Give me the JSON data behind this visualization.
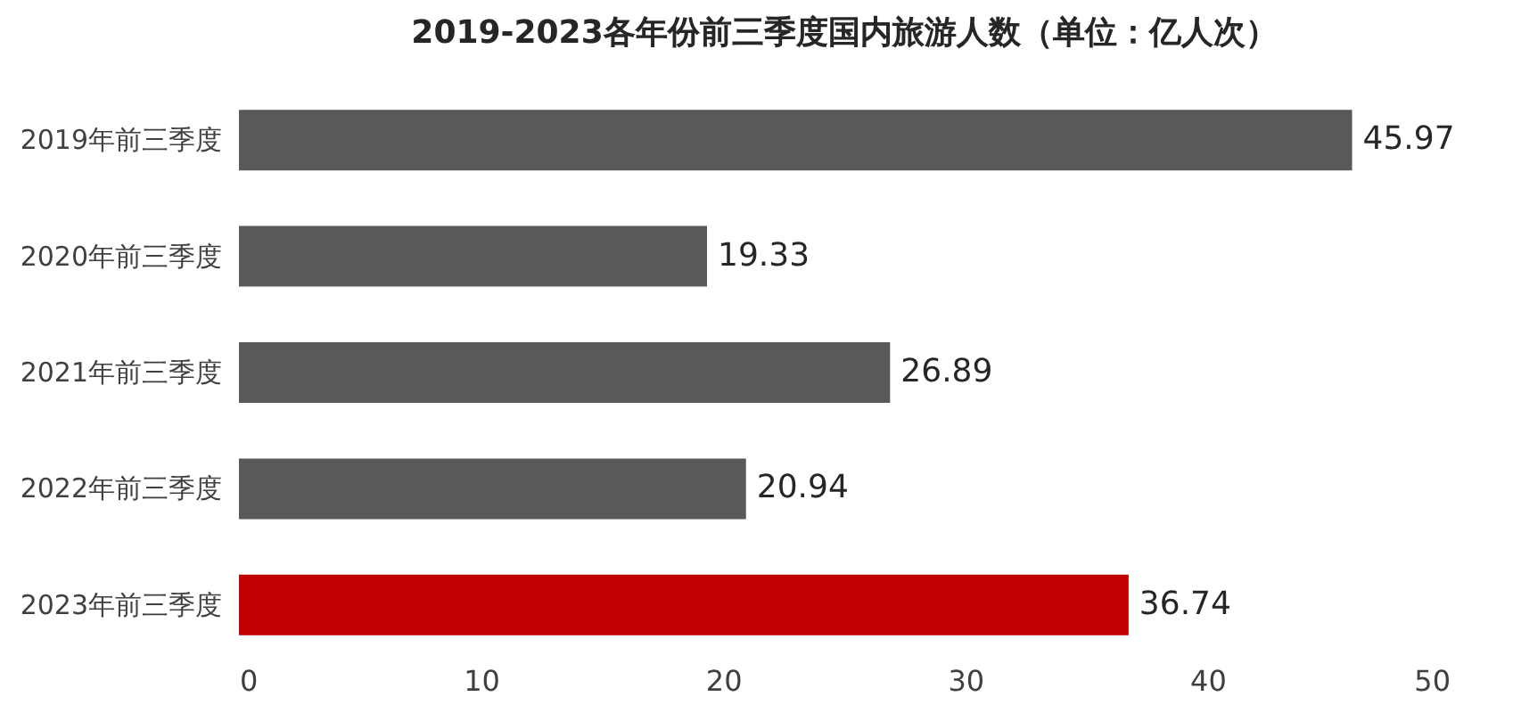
{
  "chart_data": {
    "type": "bar",
    "orientation": "horizontal",
    "title": "2019-2023各年份前三季度国内旅游人数（单位：亿人次）",
    "categories": [
      "2019年前三季度",
      "2020年前三季度",
      "2021年前三季度",
      "2022年前三季度",
      "2023年前三季度"
    ],
    "values": [
      45.97,
      19.33,
      26.89,
      20.94,
      36.74
    ],
    "colors": [
      "#595959",
      "#595959",
      "#595959",
      "#595959",
      "#c00000"
    ],
    "xlim": [
      0,
      50
    ],
    "xticks": [
      0,
      10,
      20,
      30,
      40,
      50
    ],
    "data_labels": true,
    "grid": false
  }
}
